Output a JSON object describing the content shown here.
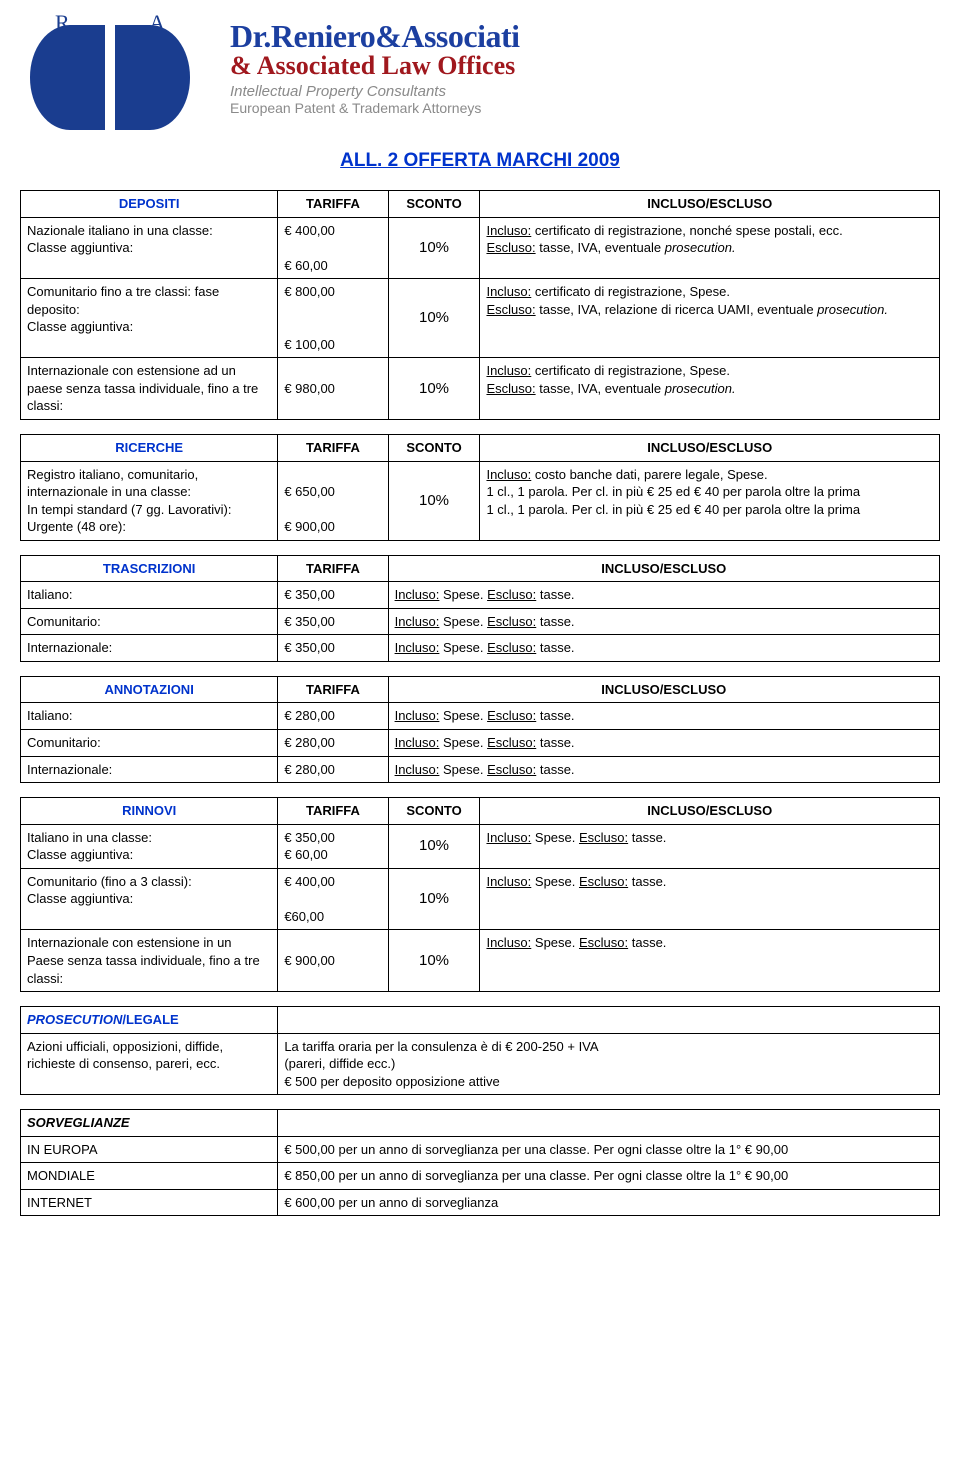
{
  "header": {
    "logo_letters": [
      "R",
      "A"
    ],
    "firm_line1": "Dr.Reniero&Associati",
    "firm_line2": "& Associated Law Offices",
    "firm_line3": "Intellectual Property Consultants",
    "firm_line4": "European Patent & Trademark Attorneys"
  },
  "page_title": "ALL. 2 OFFERTA MARCHI 2009",
  "col_headers": {
    "tariffa": "TARIFFA",
    "sconto": "SCONTO",
    "incluso": "INCLUSO/ESCLUSO"
  },
  "depositi": {
    "title": "DEPOSITI",
    "rows": [
      {
        "desc": "Nazionale italiano in una classe:\nClasse aggiuntiva:",
        "tariffa": "€ 400,00\n\n€ 60,00",
        "sconto": "10%",
        "incluso_pre": "Incluso:",
        "incluso_txt": " certificato di registrazione, nonché spese postali, ecc.",
        "escluso_pre": "Escluso:",
        "escluso_txt": " tasse, IVA, eventuale ",
        "escluso_ital": "prosecution."
      },
      {
        "desc": "Comunitario fino a tre classi: fase deposito:\nClasse aggiuntiva:",
        "tariffa": "€ 800,00\n\n\n€ 100,00",
        "sconto": "10%",
        "incluso_pre": "Incluso:",
        "incluso_txt": " certificato di registrazione, Spese.",
        "escluso_pre": "Escluso:",
        "escluso_txt": " tasse, IVA, relazione di ricerca UAMI, eventuale ",
        "escluso_ital": "prosecution."
      },
      {
        "desc": "Internazionale con estensione ad un paese senza tassa individuale, fino a tre classi:",
        "tariffa": "\n€ 980,00",
        "sconto": "10%",
        "incluso_pre": "Incluso:",
        "incluso_txt": " certificato di registrazione, Spese.",
        "escluso_pre": "Escluso:",
        "escluso_txt": " tasse, IVA, eventuale ",
        "escluso_ital": "prosecution."
      }
    ]
  },
  "ricerche": {
    "title": "RICERCHE",
    "rows": [
      {
        "desc": "Registro italiano, comunitario, internazionale in una classe:\nIn tempi standard (7 gg. Lavorativi):\nUrgente (48 ore):",
        "tariffa": "\n€ 650,00\n\n€ 900,00",
        "sconto": "10%",
        "incluso_pre": "Incluso:",
        "incluso_txt": " costo banche dati, parere legale, Spese.\n1 cl., 1 parola. Per cl. in più € 25 ed € 40 per parola oltre la prima\n1 cl., 1 parola. Per cl. in più € 25 ed € 40 per parola oltre la prima"
      }
    ]
  },
  "trascrizioni": {
    "title": "TRASCRIZIONI",
    "rows": [
      {
        "desc": "Italiano:",
        "tariffa": "€ 350,00",
        "inc_pre": "Incluso:",
        "inc": " Spese. ",
        "esc_pre": "Escluso:",
        "esc": " tasse."
      },
      {
        "desc": "Comunitario:",
        "tariffa": "€ 350,00",
        "inc_pre": "Incluso:",
        "inc": " Spese. ",
        "esc_pre": "Escluso:",
        "esc": " tasse."
      },
      {
        "desc": "Internazionale:",
        "tariffa": "€ 350,00",
        "inc_pre": "Incluso:",
        "inc": " Spese. ",
        "esc_pre": "Escluso:",
        "esc": " tasse."
      }
    ]
  },
  "annotazioni": {
    "title": "ANNOTAZIONI",
    "rows": [
      {
        "desc": "Italiano:",
        "tariffa": "€ 280,00",
        "inc_pre": "Incluso:",
        "inc": " Spese. ",
        "esc_pre": "Escluso:",
        "esc": " tasse."
      },
      {
        "desc": "Comunitario:",
        "tariffa": "€ 280,00",
        "inc_pre": "Incluso:",
        "inc": " Spese. ",
        "esc_pre": "Escluso:",
        "esc": " tasse."
      },
      {
        "desc": "Internazionale:",
        "tariffa": "€ 280,00",
        "inc_pre": "Incluso:",
        "inc": " Spese. ",
        "esc_pre": "Escluso:",
        "esc": " tasse."
      }
    ]
  },
  "rinnovi": {
    "title": "RINNOVI",
    "rows": [
      {
        "desc": "Italiano in una classe:\nClasse aggiuntiva:",
        "tariffa": "€ 350,00\n€ 60,00",
        "sconto": "10%",
        "inc_pre": "Incluso:",
        "inc": " Spese. ",
        "esc_pre": "Escluso:",
        "esc": " tasse."
      },
      {
        "desc": "Comunitario (fino a 3 classi):\nClasse aggiuntiva:",
        "tariffa": "€ 400,00\n\n€60,00",
        "sconto": "10%",
        "inc_pre": "Incluso:",
        "inc": " Spese. ",
        "esc_pre": "Escluso:",
        "esc": " tasse."
      },
      {
        "desc": "Internazionale con estensione in un Paese senza tassa individuale, fino a tre classi:",
        "tariffa": "\n€ 900,00",
        "sconto": "10%",
        "inc_pre": "Incluso:",
        "inc": " Spese. ",
        "esc_pre": "Escluso:",
        "esc": " tasse."
      }
    ]
  },
  "prosecution": {
    "title_ital": "PROSECUTION",
    "title_rest": "/LEGALE",
    "left": "Azioni ufficiali, opposizioni, diffide, richieste di consenso, pareri, ecc.",
    "right": "La tariffa oraria per la consulenza è di € 200-250 + IVA\n(pareri, diffide ecc.)\n€ 500 per deposito opposizione attive"
  },
  "sorveglianze": {
    "title": "SORVEGLIANZE",
    "rows": [
      {
        "label": "IN EUROPA",
        "text": "€ 500,00  per un anno di sorveglianza per una classe. Per ogni classe oltre la 1° € 90,00"
      },
      {
        "label": "MONDIALE",
        "text": "€ 850,00 per un anno di sorveglianza per una classe. Per ogni classe oltre la 1° € 90,00"
      },
      {
        "label": "INTERNET",
        "text": "€ 600,00 per un anno di sorveglianza"
      }
    ]
  },
  "colors": {
    "brand_blue": "#1a3d8f",
    "brand_text_blue": "#1c3fa0",
    "brand_red": "#a0181e",
    "brand_grey": "#8a8a8a",
    "link_blue": "#0033cc",
    "border": "#000000",
    "bg": "#ffffff"
  }
}
